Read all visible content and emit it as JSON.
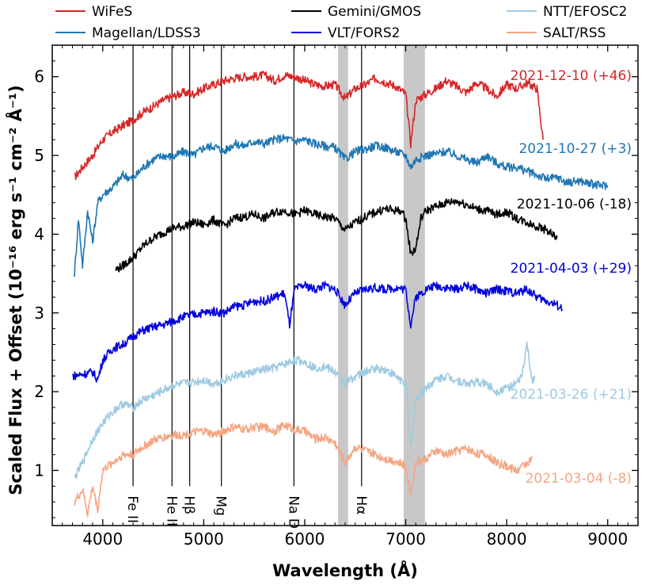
{
  "chart_data": {
    "type": "line",
    "title": "",
    "xlabel": "Wavelength (Å)",
    "ylabel": "Scaled Flux + Offset  (10⁻¹⁶ erg s⁻¹ cm⁻² Å⁻¹)",
    "xlim": [
      3500,
      9300
    ],
    "ylim": [
      0.3,
      6.4
    ],
    "x_ticks": [
      4000,
      5000,
      6000,
      7000,
      8000,
      9000
    ],
    "x_tick_labels": [
      "4000",
      "5000",
      "6000",
      "7000",
      "8000",
      "9000"
    ],
    "y_ticks": [
      1,
      2,
      3,
      4,
      5,
      6
    ],
    "y_tick_labels": [
      "1",
      "2",
      "3",
      "4",
      "5",
      "6"
    ],
    "grid": false,
    "legend_position": "top",
    "telluric_bands": [
      [
        6330,
        6430
      ],
      [
        6980,
        7190
      ]
    ],
    "line_markers": [
      {
        "label": "Fe II",
        "wavelength": 4300,
        "y_bottom": 0.8
      },
      {
        "label": "He II",
        "wavelength": 4686,
        "y_bottom": 0.8
      },
      {
        "label": "Hβ",
        "wavelength": 4861,
        "y_bottom": 0.8
      },
      {
        "label": "Mg",
        "wavelength": 5175,
        "y_bottom": 0.8
      },
      {
        "label": "Na D",
        "wavelength": 5893,
        "y_bottom": 0.8
      },
      {
        "label": "Hα",
        "wavelength": 6563,
        "y_bottom": 0.8
      }
    ],
    "series": [
      {
        "name": "WiFeS",
        "color": "#d62728",
        "epoch": "2021-12-10 (+46)",
        "x": [
          3720,
          3800,
          3900,
          4000,
          4100,
          4200,
          4300,
          4400,
          4500,
          4600,
          4700,
          4800,
          4900,
          5000,
          5100,
          5200,
          5300,
          5400,
          5500,
          5600,
          5700,
          5800,
          5900,
          6000,
          6100,
          6200,
          6300,
          6400,
          6500,
          6600,
          6700,
          6800,
          6900,
          7000,
          7050,
          7100,
          7200,
          7300,
          7400,
          7500,
          7600,
          7700,
          7800,
          7900,
          8000,
          8100,
          8200,
          8300,
          8360
        ],
        "y": [
          4.72,
          4.85,
          5.0,
          5.2,
          5.3,
          5.38,
          5.45,
          5.55,
          5.62,
          5.7,
          5.75,
          5.8,
          5.78,
          5.85,
          5.9,
          5.95,
          5.98,
          6.0,
          6.0,
          6.02,
          5.95,
          6.02,
          6.0,
          5.95,
          5.9,
          5.88,
          5.9,
          5.72,
          5.85,
          5.9,
          5.98,
          5.93,
          5.88,
          5.78,
          5.15,
          5.7,
          5.78,
          5.85,
          5.95,
          5.88,
          5.8,
          5.92,
          5.85,
          5.75,
          5.9,
          5.85,
          5.92,
          5.85,
          5.2
        ]
      },
      {
        "name": "Magellan/LDSS3",
        "color": "#1f77b4",
        "epoch": "2021-10-27 (+3)",
        "x": [
          3720,
          3760,
          3800,
          3850,
          3900,
          3950,
          4000,
          4100,
          4200,
          4300,
          4400,
          4500,
          4600,
          4700,
          4800,
          4900,
          5000,
          5100,
          5200,
          5300,
          5400,
          5500,
          5600,
          5700,
          5800,
          5900,
          6000,
          6100,
          6200,
          6300,
          6400,
          6500,
          6600,
          6700,
          6800,
          6900,
          7000,
          7050,
          7100,
          7200,
          7300,
          7400,
          7500,
          7600,
          7700,
          7800,
          7900,
          8000,
          8100,
          8200,
          8300,
          8400,
          8500,
          8600,
          8700,
          8800,
          8900,
          9000
        ],
        "y": [
          3.5,
          4.2,
          3.6,
          4.3,
          3.9,
          4.4,
          4.5,
          4.6,
          4.75,
          4.7,
          4.85,
          4.95,
          5.0,
          4.98,
          5.05,
          5.0,
          5.1,
          5.12,
          5.05,
          5.15,
          5.12,
          5.18,
          5.15,
          5.2,
          5.22,
          5.18,
          5.2,
          5.15,
          5.12,
          5.1,
          4.95,
          5.05,
          5.08,
          5.12,
          5.1,
          5.05,
          5.0,
          4.85,
          4.95,
          5.0,
          5.02,
          5.05,
          5.0,
          4.95,
          4.9,
          5.0,
          4.9,
          4.85,
          4.85,
          4.8,
          4.75,
          4.7,
          4.72,
          4.65,
          4.68,
          4.65,
          4.62,
          4.62
        ]
      },
      {
        "name": "Gemini/GMOS",
        "color": "#000000",
        "epoch": "2021-10-06 (-18)",
        "x": [
          4130,
          4200,
          4300,
          4400,
          4500,
          4600,
          4700,
          4800,
          4900,
          5000,
          5100,
          5200,
          5300,
          5400,
          5500,
          5600,
          5700,
          5800,
          5900,
          6000,
          6100,
          6200,
          6300,
          6400,
          6500,
          6600,
          6700,
          6800,
          6900,
          6950,
          7000,
          7050,
          7100,
          7150,
          7200,
          7300,
          7400,
          7500,
          7600,
          7700,
          7800,
          7900,
          8000,
          8100,
          8200,
          8300,
          8400,
          8500
        ],
        "y": [
          3.55,
          3.6,
          3.7,
          3.85,
          3.95,
          4.02,
          4.08,
          4.1,
          4.15,
          4.12,
          4.18,
          4.1,
          4.2,
          4.22,
          4.25,
          4.2,
          4.28,
          4.3,
          4.25,
          4.3,
          4.25,
          4.22,
          4.2,
          4.05,
          4.15,
          4.22,
          4.28,
          4.32,
          4.3,
          4.3,
          4.2,
          3.75,
          3.82,
          4.2,
          4.3,
          4.35,
          4.4,
          4.42,
          4.38,
          4.32,
          4.3,
          4.25,
          4.28,
          4.2,
          4.15,
          4.1,
          4.05,
          3.95
        ]
      },
      {
        "name": "VLT/FORS2",
        "color": "#0000dd",
        "epoch": "2021-04-03 (+29)",
        "x": [
          3700,
          3800,
          3900,
          3950,
          4000,
          4100,
          4200,
          4300,
          4400,
          4500,
          4600,
          4700,
          4800,
          4900,
          5000,
          5100,
          5200,
          5300,
          5400,
          5500,
          5600,
          5700,
          5800,
          5850,
          5900,
          6000,
          6100,
          6200,
          6300,
          6400,
          6500,
          6600,
          6700,
          6800,
          6900,
          7000,
          7050,
          7100,
          7200,
          7300,
          7400,
          7500,
          7600,
          7700,
          7800,
          7900,
          8000,
          8100,
          8200,
          8300,
          8400,
          8500,
          8550
        ],
        "y": [
          2.2,
          2.22,
          2.25,
          2.15,
          2.4,
          2.55,
          2.6,
          2.7,
          2.78,
          2.82,
          2.85,
          2.9,
          2.95,
          2.98,
          3.0,
          3.02,
          3.0,
          3.08,
          3.1,
          3.15,
          3.15,
          3.2,
          3.25,
          2.85,
          3.3,
          3.35,
          3.3,
          3.35,
          3.3,
          3.1,
          3.25,
          3.3,
          3.32,
          3.3,
          3.32,
          3.3,
          2.85,
          3.2,
          3.3,
          3.35,
          3.32,
          3.3,
          3.35,
          3.3,
          3.25,
          3.3,
          3.28,
          3.25,
          3.3,
          3.2,
          3.15,
          3.1,
          3.05
        ]
      },
      {
        "name": "NTT/EFOSC2",
        "color": "#9ecae1",
        "epoch": "2021-03-26 (+21)",
        "x": [
          3720,
          3800,
          3900,
          4000,
          4100,
          4200,
          4300,
          4400,
          4500,
          4600,
          4700,
          4800,
          4900,
          5000,
          5100,
          5200,
          5300,
          5400,
          5500,
          5600,
          5700,
          5800,
          5900,
          6000,
          6100,
          6200,
          6300,
          6400,
          6500,
          6600,
          6700,
          6800,
          6900,
          7000,
          7050,
          7100,
          7200,
          7300,
          7400,
          7500,
          7600,
          7700,
          7800,
          7900,
          8000,
          8100,
          8150,
          8200,
          8250,
          8280
        ],
        "y": [
          0.9,
          1.1,
          1.4,
          1.6,
          1.75,
          1.85,
          1.8,
          1.9,
          1.95,
          2.02,
          2.08,
          2.1,
          2.12,
          2.15,
          2.1,
          2.15,
          2.2,
          2.22,
          2.25,
          2.28,
          2.3,
          2.35,
          2.4,
          2.38,
          2.3,
          2.32,
          2.25,
          2.1,
          2.2,
          2.25,
          2.3,
          2.28,
          2.2,
          2.1,
          1.3,
          1.9,
          2.05,
          2.15,
          2.2,
          2.15,
          2.1,
          2.12,
          2.1,
          2.0,
          2.05,
          2.1,
          2.2,
          2.6,
          2.15,
          2.2
        ]
      },
      {
        "name": "SALT/RSS",
        "color": "#f4a582",
        "epoch": "2021-03-04 (-8)",
        "x": [
          3720,
          3800,
          3850,
          3900,
          3950,
          4000,
          4100,
          4200,
          4300,
          4400,
          4500,
          4600,
          4700,
          4800,
          4900,
          5000,
          5100,
          5200,
          5300,
          5400,
          5500,
          5600,
          5700,
          5800,
          5900,
          6000,
          6100,
          6200,
          6300,
          6400,
          6500,
          6600,
          6700,
          6800,
          6900,
          7000,
          7050,
          7100,
          7200,
          7300,
          7400,
          7500,
          7600,
          7700,
          7800,
          7900,
          8000,
          8100,
          8200,
          8250
        ],
        "y": [
          0.6,
          0.75,
          0.45,
          0.8,
          0.5,
          1.0,
          1.1,
          1.2,
          1.2,
          1.3,
          1.38,
          1.42,
          1.45,
          1.45,
          1.48,
          1.5,
          1.45,
          1.5,
          1.55,
          1.52,
          1.55,
          1.55,
          1.5,
          1.58,
          1.52,
          1.5,
          1.4,
          1.42,
          1.35,
          1.1,
          1.3,
          1.25,
          1.2,
          1.15,
          1.12,
          1.05,
          0.7,
          1.1,
          1.15,
          1.25,
          1.2,
          1.25,
          1.28,
          1.22,
          1.2,
          1.1,
          1.05,
          1.0,
          1.1,
          1.15
        ]
      }
    ]
  }
}
